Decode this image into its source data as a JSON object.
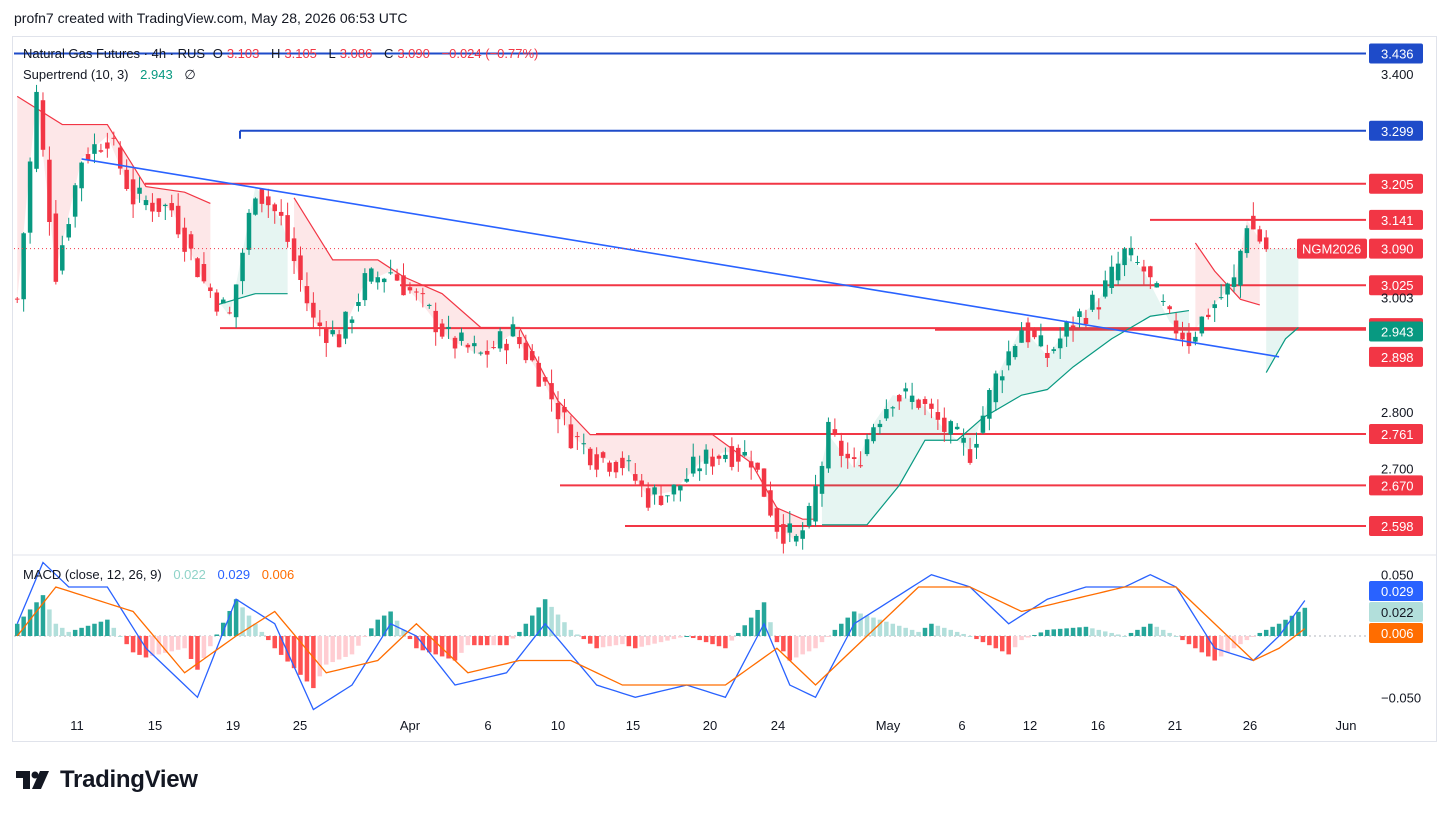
{
  "header": {
    "text": "profn7 created with TradingView.com, May 28, 2026 06:53 UTC"
  },
  "legend": {
    "symbol": "Natural Gas Futures · 4h · RUS",
    "o_label": "O",
    "o_value": "3.103",
    "h_label": "H",
    "h_value": "3.105",
    "l_label": "L",
    "l_value": "3.086",
    "c_label": "C",
    "c_value": "3.090",
    "change": "−0.024 (−0.77%)",
    "supertrend_label": "Supertrend (10, 3)",
    "supertrend_value": "2.943",
    "supertrend_extra": "∅",
    "macd_label": "MACD (close, 12, 26, 9)",
    "macd_hist": "0.022",
    "macd_line": "0.029",
    "macd_signal": "0.006"
  },
  "colors": {
    "up": "#089981",
    "down": "#f23645",
    "blue_line": "#1e4bc9",
    "trend_line": "#2962ff",
    "macd": "#2962ff",
    "signal": "#ff6d00"
  },
  "chart_data": [
    {
      "type": "candlestick",
      "title": "Natural Gas Futures · 4h · RUS",
      "x_tick_labels": [
        "11",
        "15",
        "19",
        "25",
        "Apr",
        "6",
        "10",
        "15",
        "20",
        "24",
        "May",
        "6",
        "12",
        "16",
        "21",
        "26",
        "Jun"
      ],
      "y_tick_labels": [
        "3.400",
        "2.800",
        "2.700"
      ],
      "ylim": [
        2.55,
        3.46
      ],
      "price_path": [
        [
          0,
          3.0
        ],
        [
          3,
          3.36
        ],
        [
          6,
          3.05
        ],
        [
          10,
          3.25
        ],
        [
          14,
          3.29
        ],
        [
          18,
          3.18
        ],
        [
          24,
          3.16
        ],
        [
          29,
          3.03
        ],
        [
          33,
          2.97
        ],
        [
          37,
          3.2
        ],
        [
          41,
          3.14
        ],
        [
          46,
          2.96
        ],
        [
          50,
          2.93
        ],
        [
          54,
          3.03
        ],
        [
          58,
          3.05
        ],
        [
          63,
          2.99
        ],
        [
          67,
          2.93
        ],
        [
          72,
          2.9
        ],
        [
          77,
          2.94
        ],
        [
          81,
          2.87
        ],
        [
          86,
          2.76
        ],
        [
          90,
          2.72
        ],
        [
          94,
          2.71
        ],
        [
          98,
          2.65
        ],
        [
          102,
          2.66
        ],
        [
          106,
          2.71
        ],
        [
          110,
          2.73
        ],
        [
          114,
          2.72
        ],
        [
          118,
          2.6
        ],
        [
          121,
          2.57
        ],
        [
          123,
          2.61
        ],
        [
          126,
          2.76
        ],
        [
          130,
          2.7
        ],
        [
          133,
          2.78
        ],
        [
          136,
          2.83
        ],
        [
          140,
          2.82
        ],
        [
          144,
          2.77
        ],
        [
          148,
          2.73
        ],
        [
          152,
          2.86
        ],
        [
          156,
          2.95
        ],
        [
          160,
          2.9
        ],
        [
          164,
          2.96
        ],
        [
          168,
          3.0
        ],
        [
          172,
          3.08
        ],
        [
          175,
          3.05
        ],
        [
          179,
          2.96
        ],
        [
          182,
          2.93
        ],
        [
          185,
          2.98
        ],
        [
          189,
          3.03
        ],
        [
          191,
          3.14
        ],
        [
          194,
          3.09
        ]
      ],
      "supertrend": [
        {
          "trend": "down",
          "points": [
            [
              0,
              3.36
            ],
            [
              7,
              3.31
            ],
            [
              14,
              3.31
            ],
            [
              20,
              3.2
            ],
            [
              26,
              3.19
            ],
            [
              30,
              3.17
            ]
          ]
        },
        {
          "trend": "up",
          "points": [
            [
              31,
              2.99
            ],
            [
              37,
              3.01
            ],
            [
              42,
              3.01
            ]
          ]
        },
        {
          "trend": "down",
          "points": [
            [
              43,
              3.18
            ],
            [
              49,
              3.07
            ],
            [
              56,
              3.07
            ],
            [
              60,
              3.04
            ],
            [
              66,
              3.01
            ],
            [
              72,
              2.95
            ],
            [
              78,
              2.95
            ],
            [
              84,
              2.82
            ],
            [
              89,
              2.76
            ],
            [
              96,
              2.76
            ],
            [
              102,
              2.76
            ],
            [
              108,
              2.76
            ],
            [
              114,
              2.71
            ],
            [
              118,
              2.63
            ],
            [
              122,
              2.61
            ],
            [
              124,
              2.61
            ]
          ]
        },
        {
          "trend": "up",
          "points": [
            [
              125,
              2.6
            ],
            [
              132,
              2.6
            ],
            [
              137,
              2.67
            ],
            [
              141,
              2.75
            ],
            [
              146,
              2.75
            ],
            [
              150,
              2.79
            ],
            [
              156,
              2.83
            ],
            [
              160,
              2.84
            ],
            [
              164,
              2.88
            ],
            [
              170,
              2.93
            ],
            [
              176,
              2.97
            ],
            [
              182,
              2.98
            ]
          ]
        },
        {
          "trend": "down",
          "points": [
            [
              183,
              3.1
            ],
            [
              186,
              3.05
            ],
            [
              190,
              3.0
            ],
            [
              193,
              2.99
            ]
          ]
        },
        {
          "trend": "up",
          "points": [
            [
              194,
              2.87
            ],
            [
              197,
              2.93
            ],
            [
              199,
              2.95
            ]
          ]
        }
      ],
      "horizontal_levels": [
        {
          "value": 3.436,
          "color": "blue"
        },
        {
          "value": 3.299,
          "color": "blue"
        },
        {
          "value": 3.205,
          "color": "red"
        },
        {
          "value": 3.141,
          "color": "red"
        },
        {
          "value": 3.025,
          "color": "red"
        },
        {
          "value": 2.949,
          "color": "red"
        },
        {
          "value": 2.946,
          "color": "red"
        },
        {
          "value": 2.761,
          "color": "red"
        },
        {
          "value": 2.67,
          "color": "red"
        },
        {
          "value": 2.598,
          "color": "red"
        }
      ],
      "trendline": [
        [
          3.249,
          10
        ],
        [
          2.898,
          196
        ]
      ],
      "price_labels": [
        {
          "text": "3.436",
          "value": 3.436,
          "bg": "#1e4bc9"
        },
        {
          "text": "3.299",
          "value": 3.299,
          "bg": "#1e4bc9"
        },
        {
          "text": "3.205",
          "value": 3.205,
          "bg": "#f23645"
        },
        {
          "text": "3.143",
          "value": 3.143,
          "bg": "none"
        },
        {
          "text": "3.141",
          "value": 3.141,
          "bg": "#f23645"
        },
        {
          "text": "3.090",
          "value": 3.09,
          "bg": "#f23645"
        },
        {
          "text": "3.025",
          "value": 3.025,
          "bg": "#f23645"
        },
        {
          "text": "3.003",
          "value": 3.003,
          "bg": "none"
        },
        {
          "text": "2.949",
          "value": 2.949,
          "bg": "#f23645"
        },
        {
          "text": "2.946",
          "value": 2.946,
          "bg": "#f23645"
        },
        {
          "text": "2.943",
          "value": 2.943,
          "bg": "#089981"
        },
        {
          "text": "2.898",
          "value": 2.898,
          "bg": "#f23645"
        },
        {
          "text": "2.761",
          "value": 2.761,
          "bg": "#f23645"
        },
        {
          "text": "2.670",
          "value": 2.67,
          "bg": "#f23645"
        },
        {
          "text": "2.598",
          "value": 2.598,
          "bg": "#f23645"
        }
      ],
      "ticker_tag": "NGM2026"
    },
    {
      "type": "line",
      "title": "MACD (close, 12, 26, 9)",
      "y_tick_labels": [
        "0.050",
        "−0.050"
      ],
      "ylim": [
        -0.062,
        0.062
      ],
      "series": [
        {
          "name": "MACD",
          "points": [
            [
              0,
              0.01
            ],
            [
              4,
              0.06
            ],
            [
              8,
              0.04
            ],
            [
              14,
              0.04
            ],
            [
              20,
              -0.01
            ],
            [
              28,
              -0.05
            ],
            [
              34,
              0.03
            ],
            [
              40,
              0.01
            ],
            [
              46,
              -0.06
            ],
            [
              52,
              -0.04
            ],
            [
              58,
              0.01
            ],
            [
              62,
              0.0
            ],
            [
              68,
              -0.04
            ],
            [
              76,
              -0.03
            ],
            [
              82,
              0.01
            ],
            [
              90,
              -0.04
            ],
            [
              96,
              -0.05
            ],
            [
              104,
              -0.04
            ],
            [
              110,
              -0.05
            ],
            [
              116,
              0.01
            ],
            [
              120,
              -0.04
            ],
            [
              124,
              -0.05
            ],
            [
              130,
              0.01
            ],
            [
              136,
              0.03
            ],
            [
              142,
              0.05
            ],
            [
              148,
              0.04
            ],
            [
              154,
              0.01
            ],
            [
              160,
              0.03
            ],
            [
              166,
              0.04
            ],
            [
              172,
              0.04
            ],
            [
              176,
              0.05
            ],
            [
              180,
              0.04
            ],
            [
              186,
              -0.01
            ],
            [
              192,
              -0.02
            ],
            [
              196,
              0.0
            ],
            [
              200,
              0.029
            ]
          ]
        },
        {
          "name": "Signal",
          "points": [
            [
              0,
              0.0
            ],
            [
              6,
              0.04
            ],
            [
              12,
              0.03
            ],
            [
              18,
              0.02
            ],
            [
              26,
              -0.03
            ],
            [
              34,
              0.0
            ],
            [
              40,
              0.02
            ],
            [
              48,
              -0.03
            ],
            [
              56,
              -0.02
            ],
            [
              62,
              0.01
            ],
            [
              70,
              -0.03
            ],
            [
              78,
              -0.02
            ],
            [
              86,
              -0.02
            ],
            [
              94,
              -0.04
            ],
            [
              102,
              -0.04
            ],
            [
              110,
              -0.04
            ],
            [
              118,
              -0.01
            ],
            [
              124,
              -0.04
            ],
            [
              132,
              0.0
            ],
            [
              140,
              0.04
            ],
            [
              148,
              0.04
            ],
            [
              156,
              0.02
            ],
            [
              164,
              0.03
            ],
            [
              172,
              0.04
            ],
            [
              180,
              0.04
            ],
            [
              186,
              0.01
            ],
            [
              192,
              -0.02
            ],
            [
              196,
              -0.01
            ],
            [
              200,
              0.006
            ]
          ]
        }
      ],
      "histogram_value": 0.022
    }
  ]
}
